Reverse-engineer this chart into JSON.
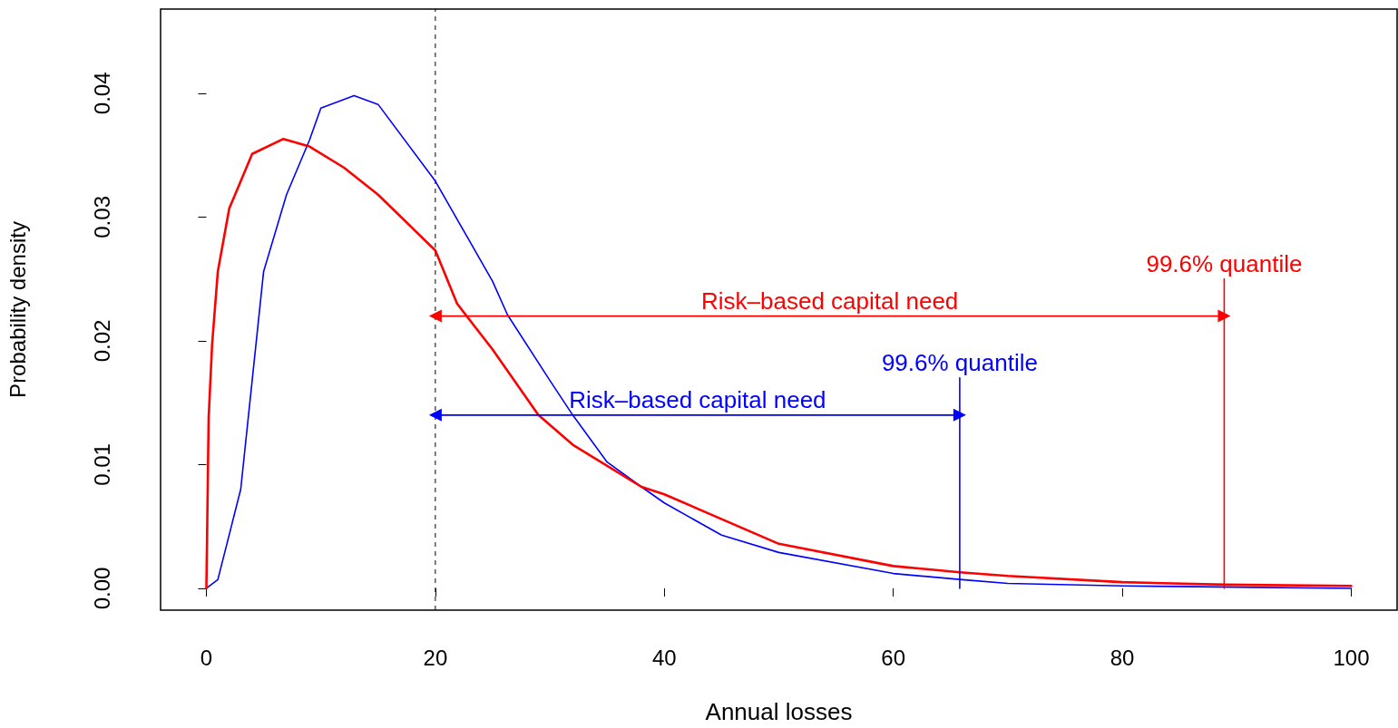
{
  "chart_data": {
    "type": "line",
    "xlabel": "Annual losses",
    "ylabel": "Probability density",
    "xlim": [
      -4,
      104
    ],
    "xticks": [
      0,
      20,
      40,
      60,
      80,
      100
    ],
    "ylim": [
      -0.00176,
      0.0468
    ],
    "yticks": [
      {
        "value": 0,
        "label": "0.00"
      },
      {
        "value": 0.01,
        "label": "0.01"
      },
      {
        "value": 0.02,
        "label": "0.02"
      },
      {
        "value": 0.03,
        "label": "0.03"
      },
      {
        "value": 0.04,
        "label": "0.04"
      }
    ],
    "grid": false,
    "legend": false,
    "marker": "none",
    "series": [
      {
        "color": "#0000ff",
        "x": [
          0,
          1,
          3,
          5,
          7,
          9,
          10,
          12.9,
          15,
          20,
          25,
          26.3,
          30,
          32,
          35,
          38,
          40,
          45,
          50,
          60,
          66,
          70,
          80,
          90,
          100
        ],
        "values": [
          0,
          0.0007,
          0.008,
          0.0256,
          0.0318,
          0.0362,
          0.0388,
          0.0398,
          0.0391,
          0.0329,
          0.0248,
          0.0221,
          0.0168,
          0.014,
          0.0102,
          0.0082,
          0.0069,
          0.0043,
          0.0029,
          0.0012,
          0.0007,
          0.0004,
          0.0002,
          0.0001,
          0
        ]
      },
      {
        "color": "#ff0000",
        "x": [
          0,
          0.2,
          0.5,
          1,
          2,
          4,
          6.7,
          9,
          12,
          15,
          20,
          21.9,
          25,
          29,
          32,
          38,
          40,
          50,
          60,
          65.8,
          70,
          80,
          89,
          100
        ],
        "values": [
          0,
          0.0138,
          0.0197,
          0.0256,
          0.0307,
          0.0351,
          0.0363,
          0.0357,
          0.034,
          0.0318,
          0.0273,
          0.023,
          0.0193,
          0.014,
          0.0116,
          0.0082,
          0.0076,
          0.0036,
          0.0018,
          0.0013,
          0.001,
          0.0005,
          0.0003,
          0.0002
        ]
      },
      {
        "name": "99.6% quantile",
        "color": "#ff0000",
        "x": [
          88.9,
          88.9
        ],
        "values": [
          0,
          0.025
        ]
      },
      {
        "name": "99.6% quantile",
        "color": "#0000ff",
        "x": [
          65.8,
          65.8
        ],
        "values": [
          0,
          0.017
        ]
      },
      {
        "name": "Risk–based capital need",
        "color": "#ff0000",
        "marker": "triangle",
        "x": [
          20,
          88.9
        ],
        "values": [
          0.022,
          0.022
        ]
      },
      {
        "name": "Risk–based capital need",
        "color": "#0000ff",
        "marker": "triangle",
        "x": [
          20,
          65.8
        ],
        "values": [
          0.014,
          0.014
        ]
      }
    ],
    "ref_lines": [
      {
        "axis": "x",
        "value": 20,
        "color": "#000000",
        "line_style": "dashed"
      }
    ]
  }
}
